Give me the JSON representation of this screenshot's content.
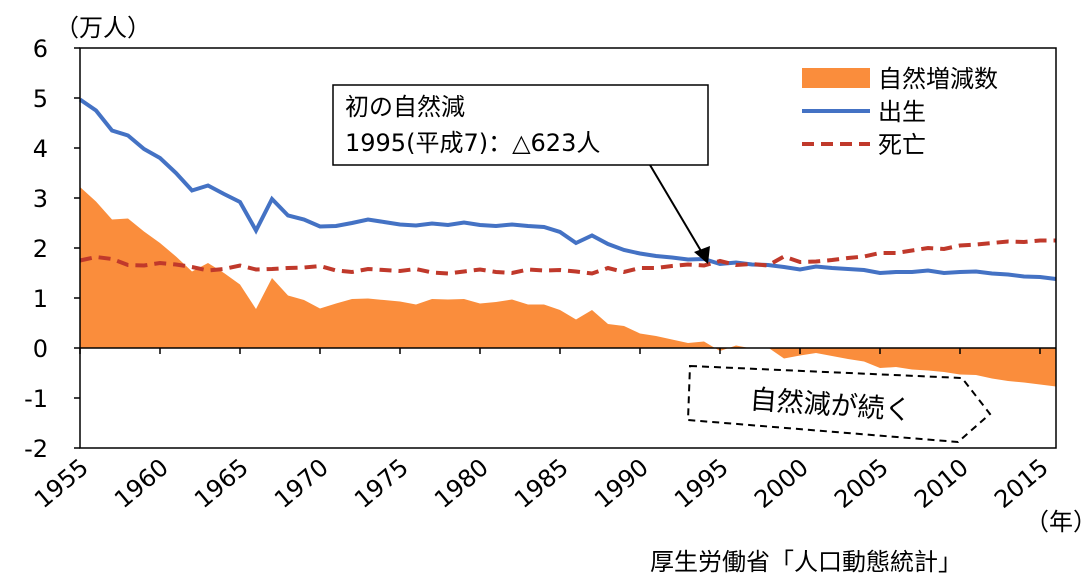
{
  "chart_data": {
    "type": "line",
    "y_unit": "（万人）",
    "x_unit": "（年）",
    "source": "厚生労働省「人口動態統計」",
    "annotation": [
      "初の自然減",
      "1995(平成7)：△623人"
    ],
    "callout": "自然減が続く",
    "x": [
      1955,
      1956,
      1957,
      1958,
      1959,
      1960,
      1961,
      1962,
      1963,
      1964,
      1965,
      1966,
      1967,
      1968,
      1969,
      1970,
      1971,
      1972,
      1973,
      1974,
      1975,
      1976,
      1977,
      1978,
      1979,
      1980,
      1981,
      1982,
      1983,
      1984,
      1985,
      1986,
      1987,
      1988,
      1989,
      1990,
      1991,
      1992,
      1993,
      1994,
      1995,
      1996,
      1997,
      1998,
      1999,
      2000,
      2001,
      2002,
      2003,
      2004,
      2005,
      2006,
      2007,
      2008,
      2009,
      2010,
      2011,
      2012,
      2013,
      2014,
      2015,
      2016
    ],
    "series": [
      {
        "name": "自然増減数",
        "color": "#fa8d3c",
        "style": "area",
        "values": [
          3.22,
          2.93,
          2.57,
          2.59,
          2.33,
          2.1,
          1.83,
          1.53,
          1.7,
          1.5,
          1.27,
          0.78,
          1.4,
          1.05,
          0.96,
          0.79,
          0.89,
          0.98,
          0.99,
          0.96,
          0.93,
          0.87,
          0.98,
          0.97,
          0.98,
          0.89,
          0.92,
          0.97,
          0.87,
          0.87,
          0.76,
          0.57,
          0.76,
          0.48,
          0.44,
          0.29,
          0.24,
          0.17,
          0.1,
          0.13,
          -0.06,
          0.05,
          -0.01,
          0.01,
          -0.21,
          -0.15,
          -0.1,
          -0.16,
          -0.22,
          -0.27,
          -0.4,
          -0.38,
          -0.43,
          -0.45,
          -0.48,
          -0.53,
          -0.54,
          -0.61,
          -0.66,
          -0.69,
          -0.73,
          -0.77
        ]
      },
      {
        "name": "出生",
        "color": "#4472c4",
        "style": "solid",
        "values": [
          4.97,
          4.75,
          4.35,
          4.25,
          3.98,
          3.8,
          3.5,
          3.15,
          3.25,
          3.08,
          2.92,
          2.35,
          2.98,
          2.65,
          2.57,
          2.43,
          2.44,
          2.5,
          2.57,
          2.52,
          2.47,
          2.45,
          2.49,
          2.46,
          2.51,
          2.46,
          2.44,
          2.47,
          2.44,
          2.42,
          2.32,
          2.1,
          2.25,
          2.08,
          1.96,
          1.89,
          1.84,
          1.81,
          1.77,
          1.78,
          1.68,
          1.71,
          1.67,
          1.66,
          1.62,
          1.57,
          1.63,
          1.6,
          1.58,
          1.56,
          1.5,
          1.52,
          1.52,
          1.55,
          1.5,
          1.52,
          1.53,
          1.49,
          1.47,
          1.43,
          1.42,
          1.38
        ]
      },
      {
        "name": "死亡",
        "color": "#c0392b",
        "style": "dashed",
        "values": [
          1.75,
          1.82,
          1.78,
          1.66,
          1.65,
          1.7,
          1.67,
          1.62,
          1.55,
          1.58,
          1.65,
          1.57,
          1.58,
          1.6,
          1.61,
          1.64,
          1.55,
          1.52,
          1.58,
          1.56,
          1.54,
          1.58,
          1.51,
          1.49,
          1.53,
          1.57,
          1.52,
          1.5,
          1.57,
          1.55,
          1.56,
          1.53,
          1.49,
          1.6,
          1.52,
          1.6,
          1.6,
          1.64,
          1.67,
          1.65,
          1.74,
          1.66,
          1.68,
          1.65,
          1.83,
          1.72,
          1.73,
          1.76,
          1.8,
          1.83,
          1.9,
          1.9,
          1.95,
          2.0,
          1.98,
          2.05,
          2.07,
          2.1,
          2.13,
          2.12,
          2.15,
          2.15
        ]
      }
    ],
    "xlim": [
      1955,
      2016
    ],
    "xticks": [
      1955,
      1960,
      1965,
      1970,
      1975,
      1980,
      1985,
      1990,
      1995,
      2000,
      2005,
      2010,
      2015
    ],
    "ylim": [
      -2,
      6
    ],
    "yticks": [
      -2,
      -1,
      0,
      1,
      2,
      3,
      4,
      5,
      6
    ]
  }
}
